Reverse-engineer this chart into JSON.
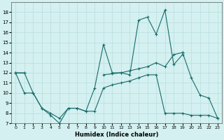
{
  "xlabel": "Humidex (Indice chaleur)",
  "x": [
    0,
    1,
    2,
    3,
    4,
    5,
    6,
    7,
    8,
    9,
    10,
    11,
    12,
    13,
    14,
    15,
    16,
    17,
    18,
    19,
    20,
    21,
    22,
    23
  ],
  "series": {
    "s1": [
      12.0,
      12.0,
      10.0,
      8.5,
      7.8,
      7.0,
      8.5,
      8.5,
      8.2,
      10.5,
      14.8,
      12.0,
      12.0,
      11.8,
      17.2,
      17.5,
      15.8,
      18.2,
      12.8,
      13.8,
      null,
      null,
      null,
      null
    ],
    "s2": [
      12.0,
      10.0,
      10.0,
      8.5,
      8.0,
      7.5,
      8.5,
      8.5,
      8.2,
      8.2,
      10.5,
      10.8,
      11.0,
      11.2,
      11.5,
      11.8,
      11.8,
      8.0,
      8.0,
      8.0,
      7.8,
      7.8,
      7.8,
      7.5
    ],
    "s3": [
      12.0,
      12.0,
      null,
      null,
      null,
      null,
      null,
      null,
      null,
      null,
      11.8,
      11.9,
      12.0,
      12.2,
      12.4,
      12.6,
      13.0,
      12.6,
      13.8,
      14.0,
      null,
      null,
      null,
      null
    ],
    "s4": [
      null,
      null,
      null,
      null,
      null,
      null,
      null,
      null,
      null,
      null,
      null,
      null,
      null,
      null,
      null,
      null,
      null,
      null,
      null,
      14.0,
      11.5,
      9.8,
      9.5,
      7.5
    ]
  },
  "ylim": [
    7,
    19
  ],
  "xlim": [
    -0.5,
    23.5
  ],
  "yticks": [
    7,
    8,
    9,
    10,
    11,
    12,
    13,
    14,
    15,
    16,
    17,
    18
  ],
  "xticks": [
    0,
    1,
    2,
    3,
    4,
    5,
    6,
    7,
    8,
    9,
    10,
    11,
    12,
    13,
    14,
    15,
    16,
    17,
    18,
    19,
    20,
    21,
    22,
    23
  ],
  "line_color": "#1a6b6b",
  "bg_color": "#d4f0f0",
  "grid_color": "#b8dede"
}
